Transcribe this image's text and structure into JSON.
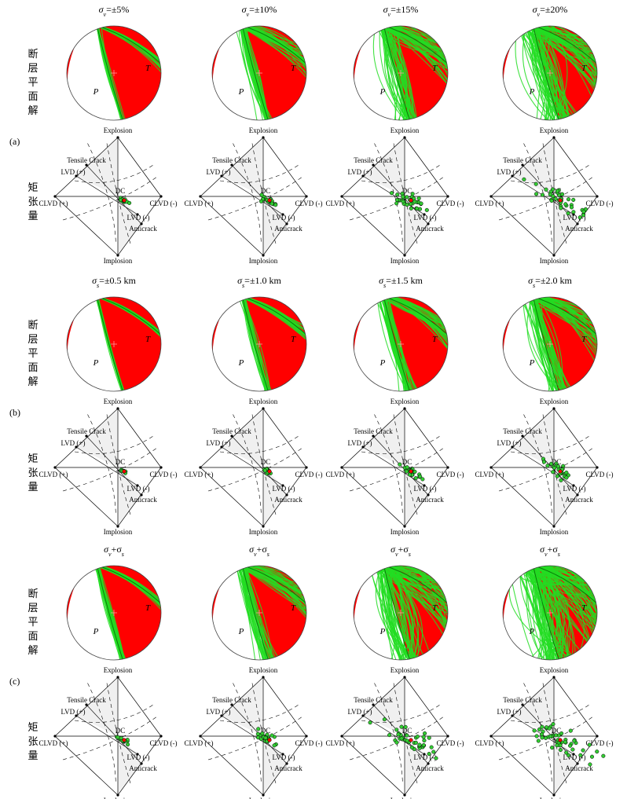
{
  "colors": {
    "compression": "#ff0000",
    "nodal": "#22dd22",
    "nodal_edge": "#0a7a0a",
    "region": "#f0f0f0",
    "center_mark": "#ff9999"
  },
  "row_labels": {
    "beachball": "断层平面解",
    "moment_tensor": "矩张量"
  },
  "hudson_labels": {
    "explosion": "Explosion",
    "implosion": "Implosion",
    "tensile_crack": "Tensile Crack",
    "lvd_plus": "LVD (+)",
    "lvd_minus": "LVD (-)",
    "clvd_plus": "CLVD (+)",
    "clvd_minus": "CLVD (-)",
    "anticrack": "Anticrack",
    "dc": "DC"
  },
  "pt_labels": {
    "p": "P",
    "t": "T"
  },
  "sections": [
    {
      "panel": "(a)",
      "titles": [
        {
          "base": "σ",
          "sub": "v",
          "rest": "=±5%"
        },
        {
          "base": "σ",
          "sub": "v",
          "rest": "=±10%"
        },
        {
          "base": "σ",
          "sub": "v",
          "rest": "=±15%"
        },
        {
          "base": "σ",
          "sub": "v",
          "rest": "=±20%"
        }
      ]
    },
    {
      "panel": "(b)",
      "titles": [
        {
          "base": "σ",
          "sub": "s",
          "rest": "=±0.5 km"
        },
        {
          "base": "σ",
          "sub": "s",
          "rest": "=±1.0 km"
        },
        {
          "base": "σ",
          "sub": "s",
          "rest": "=±1.5 km"
        },
        {
          "base": "σ",
          "sub": "s",
          "rest": "=±2.0 km"
        }
      ]
    },
    {
      "panel": "(c)",
      "titles": [
        {
          "base": "σ",
          "sub": "v",
          "rest": "+σ",
          "sub2": "s"
        },
        {
          "base": "σ",
          "sub": "v",
          "rest": "+σ",
          "sub2": "s"
        },
        {
          "base": "σ",
          "sub": "v",
          "rest": "+σ",
          "sub2": "s"
        },
        {
          "base": "σ",
          "sub": "v",
          "rest": "+σ",
          "sub2": "s"
        }
      ]
    }
  ],
  "uncertainty_levels": [
    {
      "beachball_spread": 0.04,
      "mt_scatter": 0.05
    },
    {
      "beachball_spread": 0.1,
      "mt_scatter": 0.1
    },
    {
      "beachball_spread": 0.2,
      "mt_scatter": 0.22
    },
    {
      "beachball_spread": 0.28,
      "mt_scatter": 0.28
    }
  ],
  "section_scale": [
    1.0,
    0.6,
    1.35
  ]
}
